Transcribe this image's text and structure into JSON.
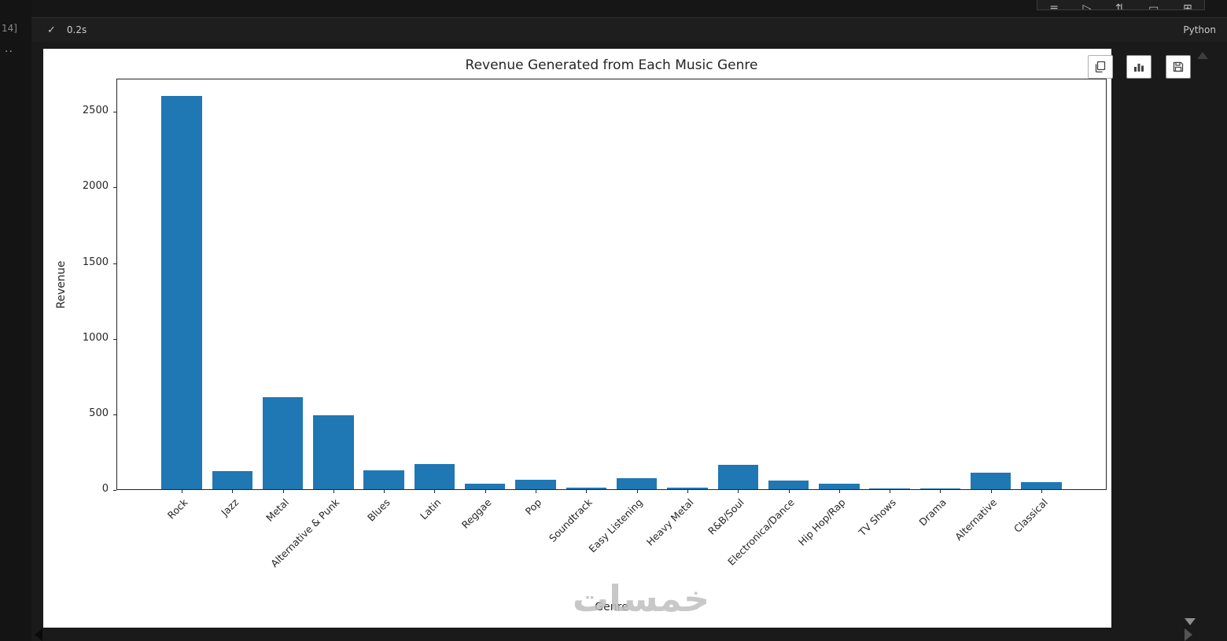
{
  "notebook": {
    "execution_count": "14]",
    "status_check": "✓",
    "exec_time": "0.2s",
    "kernel_label": "Python",
    "gutter_more": "··",
    "toolbar_icon_names": [
      "menu-icon",
      "run-next-icon",
      "run-below-icon",
      "split-cell-icon",
      "delete-icon"
    ]
  },
  "output_buttons": {
    "copy": "copy-output",
    "chart": "open-plot-viewer",
    "save": "save-plot"
  },
  "watermark_text": "خمسات",
  "colors": {
    "bar_fill": "#1f77b4",
    "panel_bg": "#ffffff",
    "page_bg": "#1a1a1a",
    "cell_bar_bg": "#1e1e1e",
    "axis_text": "#262626",
    "muted_text": "#cccccc"
  },
  "chart_data": {
    "type": "bar",
    "title": "Revenue Generated from Each Music Genre",
    "xlabel": "Genre",
    "ylabel": "Revenue",
    "categories": [
      "Rock",
      "Jazz",
      "Metal",
      "Alternative & Punk",
      "Blues",
      "Latin",
      "Reggae",
      "Pop",
      "Soundtrack",
      "Easy Listening",
      "Heavy Metal",
      "R&B/Soul",
      "Electronica/Dance",
      "Hip Hop/Rap",
      "TV Shows",
      "Drama",
      "Alternative",
      "Classical"
    ],
    "values": [
      2600,
      120,
      610,
      487,
      125,
      168,
      35,
      60,
      10,
      72,
      8,
      160,
      55,
      35,
      3,
      2,
      110,
      45
    ],
    "yticks": [
      0,
      500,
      1000,
      1500,
      2000,
      2500
    ],
    "ylim": [
      0,
      2720
    ],
    "grid": false,
    "legend": false,
    "bar_color": "#1f77b4",
    "xtick_rotation": 45
  }
}
